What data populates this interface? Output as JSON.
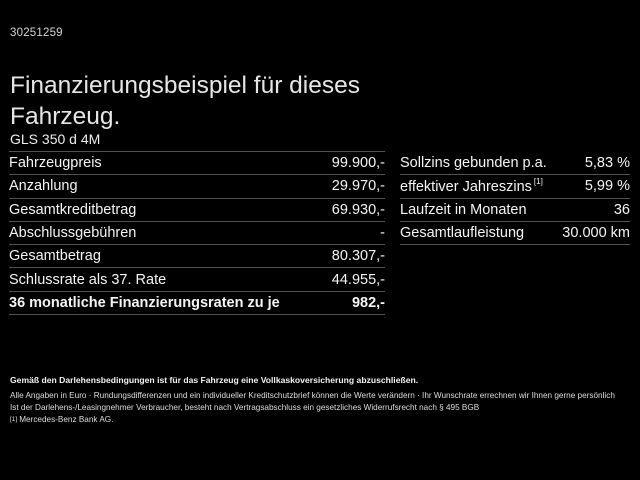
{
  "page": {
    "doc_number": "30251259",
    "title": "Finanzierungsbeispiel für dieses Fahrzeug.",
    "model": "GLS 350 d 4M"
  },
  "finance_table": {
    "rows": [
      {
        "label": "Fahrzeugpreis",
        "value": "99.900,-"
      },
      {
        "label": "Anzahlung",
        "value": "29.970,-"
      },
      {
        "label": "Gesamtkreditbetrag",
        "value": "69.930,-"
      },
      {
        "label": "Abschlussgebühren",
        "value": "-"
      },
      {
        "label": "Gesamtbetrag",
        "value": "80.307,-"
      },
      {
        "label": "Schlussrate als 37. Rate",
        "value": "44.955,-"
      },
      {
        "label": "36 monatliche Finanzierungsraten zu je",
        "value": "982,-"
      }
    ]
  },
  "conditions_table": {
    "rows": [
      {
        "label": "Sollzins gebunden p.a.",
        "sup": "",
        "value": "5,83 %"
      },
      {
        "label": "effektiver Jahreszins",
        "sup": "[1]",
        "value": "5,99 %"
      },
      {
        "label": "Laufzeit in Monaten",
        "sup": "",
        "value": "36"
      },
      {
        "label": "Gesamtlaufleistung",
        "sup": "",
        "value": "30.000 km"
      }
    ]
  },
  "footnotes": {
    "line1": "Gemäß den Darlehensbedingungen ist für das Fahrzeug eine Vollkaskoversicherung abzuschließen.",
    "line2": "Alle Angaben in Euro · Rundungsdifferenzen und ein individueller Kreditschutzbrief können die Werte verändern · Ihr Wunschrate errechnen wir Ihnen gerne persönlich",
    "line3": "Ist der Darlehens-/Leasingnehmer Verbraucher, besteht nach Vertragsabschluss ein gesetzliches Widerrufsrecht nach § 495 BGB",
    "line4_marker": "[1]",
    "line4_text": "Mercedes-Benz Bank AG."
  },
  "colors": {
    "background": "#000000",
    "text": "#f5f5f5",
    "separator": "#525252"
  }
}
